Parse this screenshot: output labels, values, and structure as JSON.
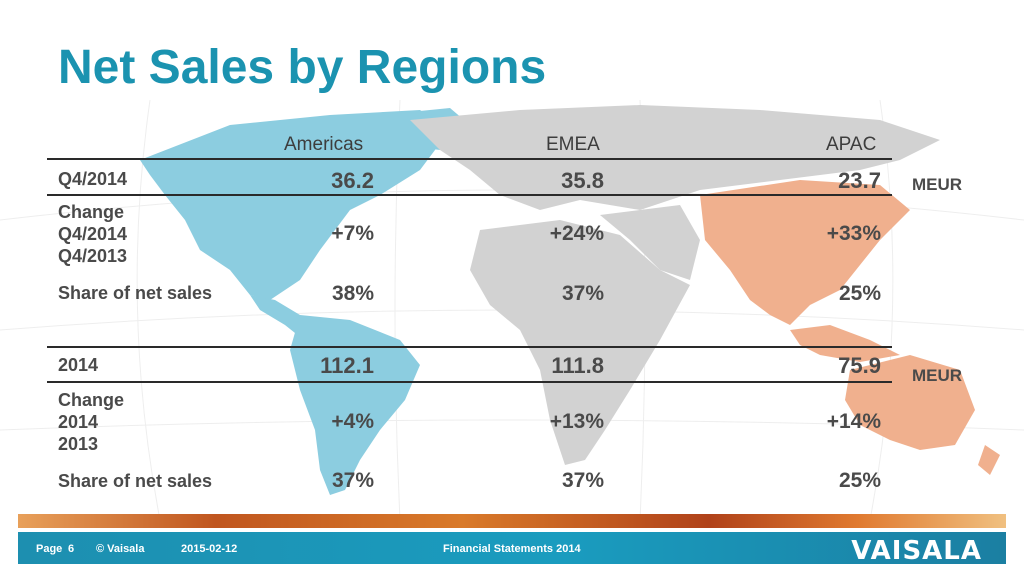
{
  "title": "Net Sales by Regions",
  "columns": [
    "Americas",
    "EMEA",
    "APAC"
  ],
  "colors": {
    "title": "#1b93b0",
    "americas": "#8ccde0",
    "apac": "#f0b08e",
    "land": "#d2d2d2",
    "footer": "#1a9cbf"
  },
  "q4": {
    "period_label": "Q4/2014",
    "values": [
      "36.2",
      "35.8",
      "23.7"
    ],
    "unit": "MEUR",
    "change_label_lines": [
      "Change",
      "Q4/2014",
      "Q4/2013"
    ],
    "changes": [
      "+7%",
      "+24%",
      "+33%"
    ],
    "share_label": "Share of net sales",
    "shares": [
      "38%",
      "37%",
      "25%"
    ]
  },
  "year": {
    "period_label": "2014",
    "values": [
      "112.1",
      "111.8",
      "75.9"
    ],
    "unit": "MEUR",
    "change_label_lines": [
      "Change",
      "2014",
      "2013"
    ],
    "changes": [
      "+4%",
      "+13%",
      "+14%"
    ],
    "share_label": "Share of net sales",
    "shares": [
      "37%",
      "37%",
      "25%"
    ]
  },
  "footer": {
    "page_label": "Page",
    "page_number": "6",
    "copyright": "© Vaisala",
    "date": "2015-02-12",
    "doc_title": "Financial Statements 2014",
    "logo_text": "VAISALA"
  }
}
